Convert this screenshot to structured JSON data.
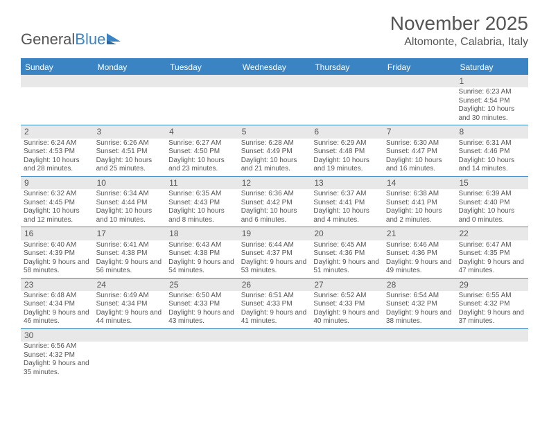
{
  "logo": {
    "text1": "General",
    "text2": "Blue"
  },
  "title": "November 2025",
  "location": "Altomonte, Calabria, Italy",
  "colors": {
    "brand": "#3a84c4",
    "header_bg": "#3a84c4",
    "header_text": "#ffffff",
    "daynum_bg": "#e8e8e8",
    "text": "#555555",
    "row_border": "#3a84c4"
  },
  "days_of_week": [
    "Sunday",
    "Monday",
    "Tuesday",
    "Wednesday",
    "Thursday",
    "Friday",
    "Saturday"
  ],
  "weeks": [
    [
      null,
      null,
      null,
      null,
      null,
      null,
      {
        "n": "1",
        "sr": "6:23 AM",
        "ss": "4:54 PM",
        "dl": "10 hours and 30 minutes."
      }
    ],
    [
      {
        "n": "2",
        "sr": "6:24 AM",
        "ss": "4:53 PM",
        "dl": "10 hours and 28 minutes."
      },
      {
        "n": "3",
        "sr": "6:26 AM",
        "ss": "4:51 PM",
        "dl": "10 hours and 25 minutes."
      },
      {
        "n": "4",
        "sr": "6:27 AM",
        "ss": "4:50 PM",
        "dl": "10 hours and 23 minutes."
      },
      {
        "n": "5",
        "sr": "6:28 AM",
        "ss": "4:49 PM",
        "dl": "10 hours and 21 minutes."
      },
      {
        "n": "6",
        "sr": "6:29 AM",
        "ss": "4:48 PM",
        "dl": "10 hours and 19 minutes."
      },
      {
        "n": "7",
        "sr": "6:30 AM",
        "ss": "4:47 PM",
        "dl": "10 hours and 16 minutes."
      },
      {
        "n": "8",
        "sr": "6:31 AM",
        "ss": "4:46 PM",
        "dl": "10 hours and 14 minutes."
      }
    ],
    [
      {
        "n": "9",
        "sr": "6:32 AM",
        "ss": "4:45 PM",
        "dl": "10 hours and 12 minutes."
      },
      {
        "n": "10",
        "sr": "6:34 AM",
        "ss": "4:44 PM",
        "dl": "10 hours and 10 minutes."
      },
      {
        "n": "11",
        "sr": "6:35 AM",
        "ss": "4:43 PM",
        "dl": "10 hours and 8 minutes."
      },
      {
        "n": "12",
        "sr": "6:36 AM",
        "ss": "4:42 PM",
        "dl": "10 hours and 6 minutes."
      },
      {
        "n": "13",
        "sr": "6:37 AM",
        "ss": "4:41 PM",
        "dl": "10 hours and 4 minutes."
      },
      {
        "n": "14",
        "sr": "6:38 AM",
        "ss": "4:41 PM",
        "dl": "10 hours and 2 minutes."
      },
      {
        "n": "15",
        "sr": "6:39 AM",
        "ss": "4:40 PM",
        "dl": "10 hours and 0 minutes."
      }
    ],
    [
      {
        "n": "16",
        "sr": "6:40 AM",
        "ss": "4:39 PM",
        "dl": "9 hours and 58 minutes."
      },
      {
        "n": "17",
        "sr": "6:41 AM",
        "ss": "4:38 PM",
        "dl": "9 hours and 56 minutes."
      },
      {
        "n": "18",
        "sr": "6:43 AM",
        "ss": "4:38 PM",
        "dl": "9 hours and 54 minutes."
      },
      {
        "n": "19",
        "sr": "6:44 AM",
        "ss": "4:37 PM",
        "dl": "9 hours and 53 minutes."
      },
      {
        "n": "20",
        "sr": "6:45 AM",
        "ss": "4:36 PM",
        "dl": "9 hours and 51 minutes."
      },
      {
        "n": "21",
        "sr": "6:46 AM",
        "ss": "4:36 PM",
        "dl": "9 hours and 49 minutes."
      },
      {
        "n": "22",
        "sr": "6:47 AM",
        "ss": "4:35 PM",
        "dl": "9 hours and 47 minutes."
      }
    ],
    [
      {
        "n": "23",
        "sr": "6:48 AM",
        "ss": "4:34 PM",
        "dl": "9 hours and 46 minutes."
      },
      {
        "n": "24",
        "sr": "6:49 AM",
        "ss": "4:34 PM",
        "dl": "9 hours and 44 minutes."
      },
      {
        "n": "25",
        "sr": "6:50 AM",
        "ss": "4:33 PM",
        "dl": "9 hours and 43 minutes."
      },
      {
        "n": "26",
        "sr": "6:51 AM",
        "ss": "4:33 PM",
        "dl": "9 hours and 41 minutes."
      },
      {
        "n": "27",
        "sr": "6:52 AM",
        "ss": "4:33 PM",
        "dl": "9 hours and 40 minutes."
      },
      {
        "n": "28",
        "sr": "6:54 AM",
        "ss": "4:32 PM",
        "dl": "9 hours and 38 minutes."
      },
      {
        "n": "29",
        "sr": "6:55 AM",
        "ss": "4:32 PM",
        "dl": "9 hours and 37 minutes."
      }
    ],
    [
      {
        "n": "30",
        "sr": "6:56 AM",
        "ss": "4:32 PM",
        "dl": "9 hours and 35 minutes."
      },
      null,
      null,
      null,
      null,
      null,
      null
    ]
  ],
  "labels": {
    "sunrise": "Sunrise:",
    "sunset": "Sunset:",
    "daylight": "Daylight:"
  }
}
